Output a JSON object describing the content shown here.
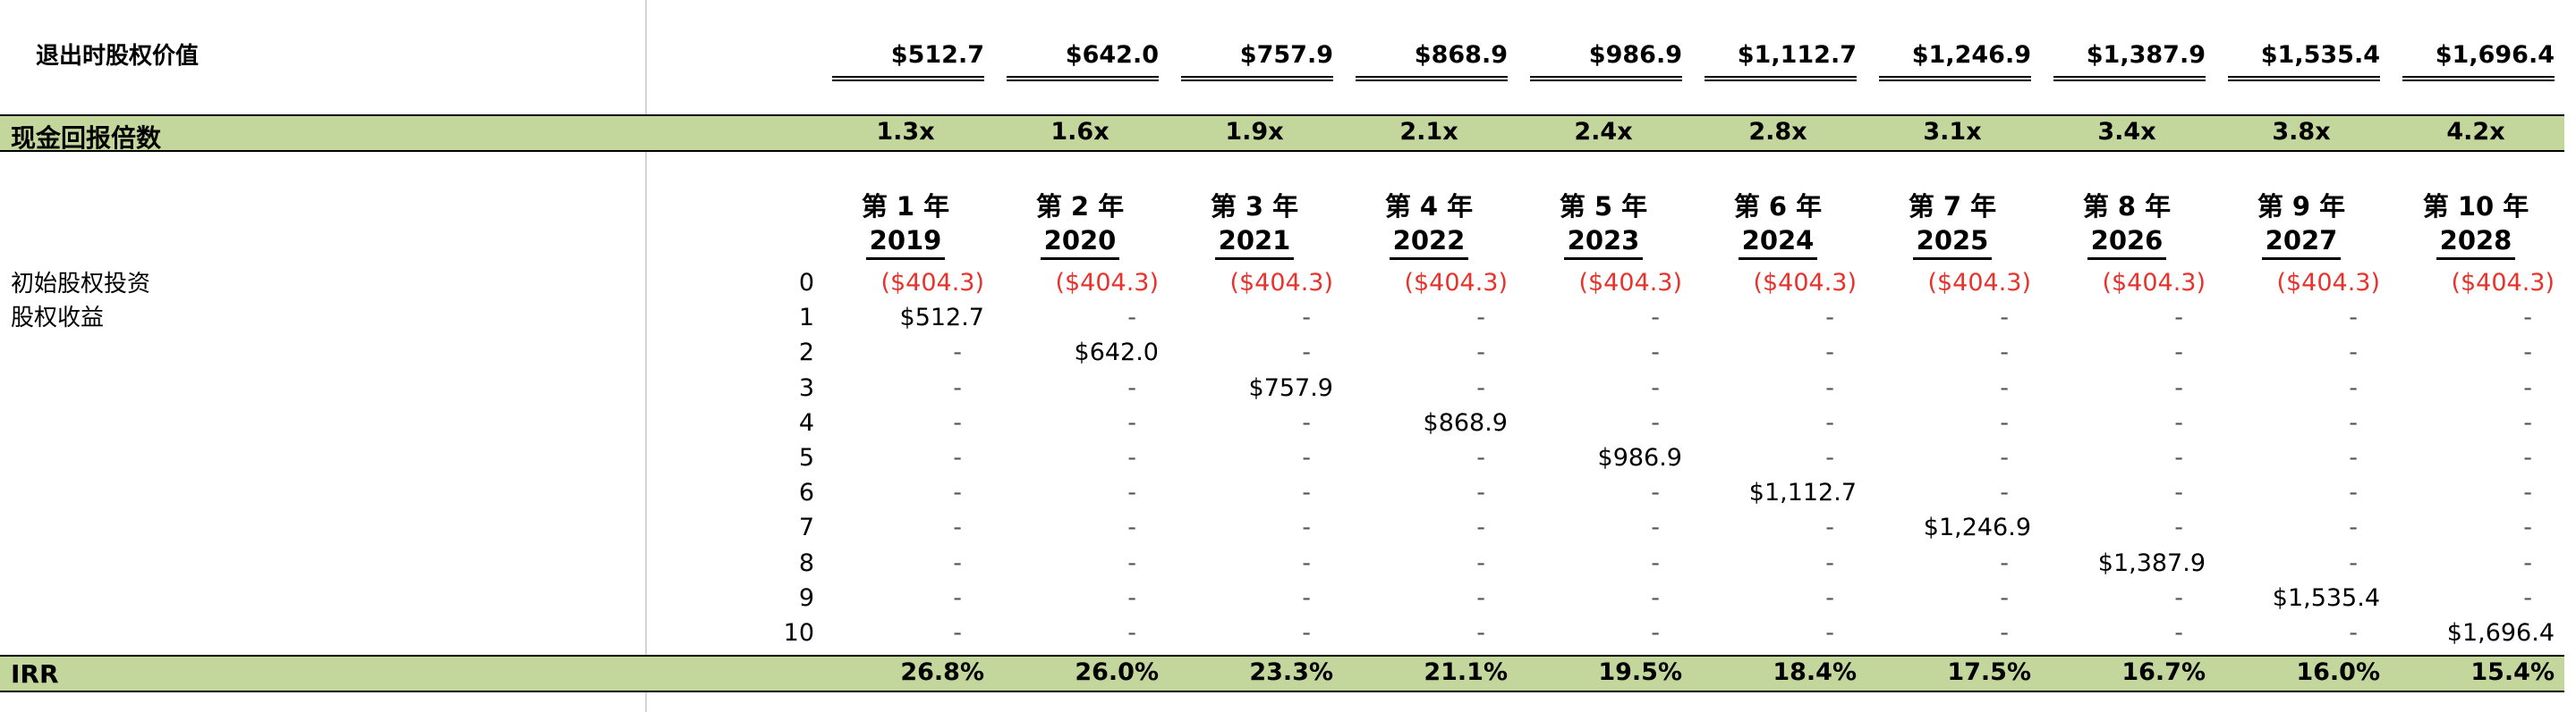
{
  "exit_equity": {
    "label": "退出时股权价值",
    "values": [
      "$512.7",
      "$642.0",
      "$757.9",
      "$868.9",
      "$986.9",
      "$1,112.7",
      "$1,246.9",
      "$1,387.9",
      "$1,535.4",
      "$1,696.4"
    ]
  },
  "multiple": {
    "label": "现金回报倍数",
    "values": [
      "1.3x",
      "1.6x",
      "1.9x",
      "2.1x",
      "2.4x",
      "2.8x",
      "3.1x",
      "3.4x",
      "3.8x",
      "4.2x"
    ]
  },
  "periods": [
    {
      "label": "第 1 年",
      "year": "2019"
    },
    {
      "label": "第 2 年",
      "year": "2020"
    },
    {
      "label": "第 3 年",
      "year": "2021"
    },
    {
      "label": "第 4 年",
      "year": "2022"
    },
    {
      "label": "第 5 年",
      "year": "2023"
    },
    {
      "label": "第 6 年",
      "year": "2024"
    },
    {
      "label": "第 7 年",
      "year": "2025"
    },
    {
      "label": "第 8 年",
      "year": "2026"
    },
    {
      "label": "第 9 年",
      "year": "2027"
    },
    {
      "label": "第 10 年",
      "year": "2028"
    }
  ],
  "initial_investment": {
    "label": "初始股权投资",
    "value": "($404.3)"
  },
  "equity_proceeds": {
    "label": "股权收益"
  },
  "row_numbers": [
    "0",
    "1",
    "2",
    "3",
    "4",
    "5",
    "6",
    "7",
    "8",
    "9",
    "10"
  ],
  "dash": "-",
  "irr": {
    "label": "IRR",
    "values": [
      "26.8%",
      "26.0%",
      "23.3%",
      "21.1%",
      "19.5%",
      "18.4%",
      "17.5%",
      "16.7%",
      "16.0%",
      "15.4%"
    ]
  }
}
